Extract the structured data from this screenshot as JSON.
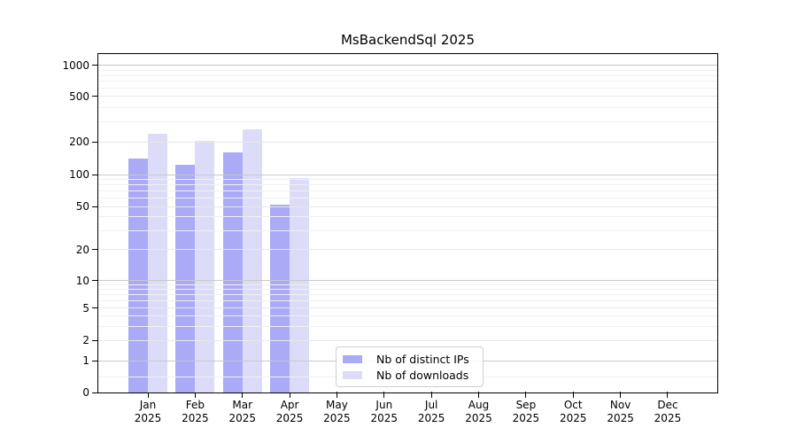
{
  "chart_data": {
    "type": "bar",
    "title": "MsBackendSql 2025",
    "xlabel": "",
    "ylabel": "",
    "yscale": "symlog",
    "ylim": [
      0,
      1400
    ],
    "yticks": [
      0,
      1,
      2,
      5,
      10,
      20,
      50,
      100,
      200,
      500,
      1000
    ],
    "grid": true,
    "year_label": "2025",
    "months": [
      "Jan",
      "Feb",
      "Mar",
      "Apr",
      "May",
      "Jun",
      "Jul",
      "Aug",
      "Sep",
      "Oct",
      "Nov",
      "Dec"
    ],
    "series": [
      {
        "name": "Nb of distinct IPs",
        "color": "#aaaaf6",
        "values": [
          141,
          123,
          162,
          52,
          0,
          0,
          0,
          0,
          0,
          0,
          0,
          0
        ]
      },
      {
        "name": "Nb of downloads",
        "color": "#dcdcf8",
        "values": [
          235,
          207,
          260,
          93,
          0,
          0,
          0,
          0,
          0,
          0,
          0,
          0
        ]
      }
    ],
    "legend": {
      "position": "lower center",
      "entries": [
        "Nb of distinct IPs",
        "Nb of downloads"
      ]
    }
  }
}
